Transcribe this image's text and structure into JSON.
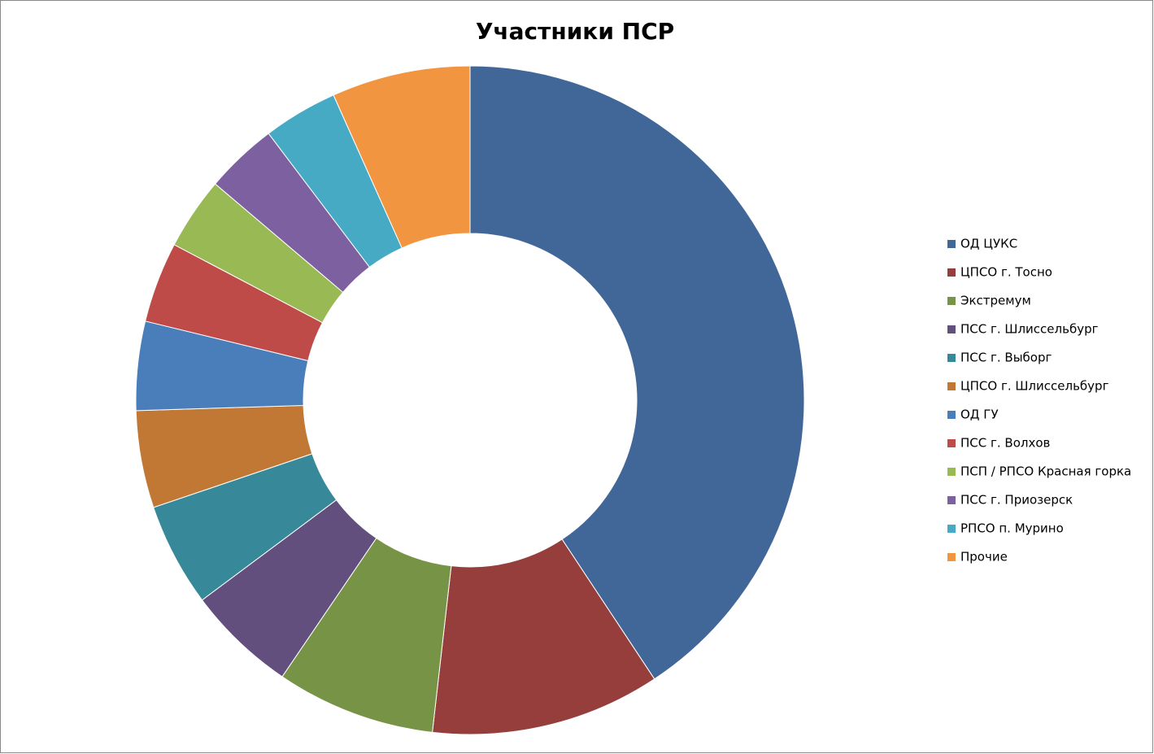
{
  "chart_data": {
    "type": "donut",
    "title": "Участники ПСР",
    "categories": [
      "ОД ЦУКС",
      "ЦПСО г. Тосно",
      "Экстремум",
      "ПСС г. Шлиссельбург",
      "ПСС г. Выборг",
      "ЦПСО г. Шлиссельбург",
      "ОД ГУ",
      "ПСС г. Волхов",
      "ПСП / РПСО Красная горка",
      "ПСС г. Приозерск",
      "РПСО п. Мурино",
      "Прочие"
    ],
    "values": [
      40.7,
      11.1,
      7.7,
      5.3,
      5.0,
      4.7,
      4.3,
      3.9,
      3.5,
      3.5,
      3.6,
      6.7
    ],
    "colors": [
      "#416798",
      "#953E3B",
      "#779446",
      "#634F7D",
      "#37899A",
      "#C17834",
      "#4A7EBB",
      "#BE4B48",
      "#98B954",
      "#7D60A0",
      "#46AAC5",
      "#F29541"
    ],
    "legend": "right"
  }
}
